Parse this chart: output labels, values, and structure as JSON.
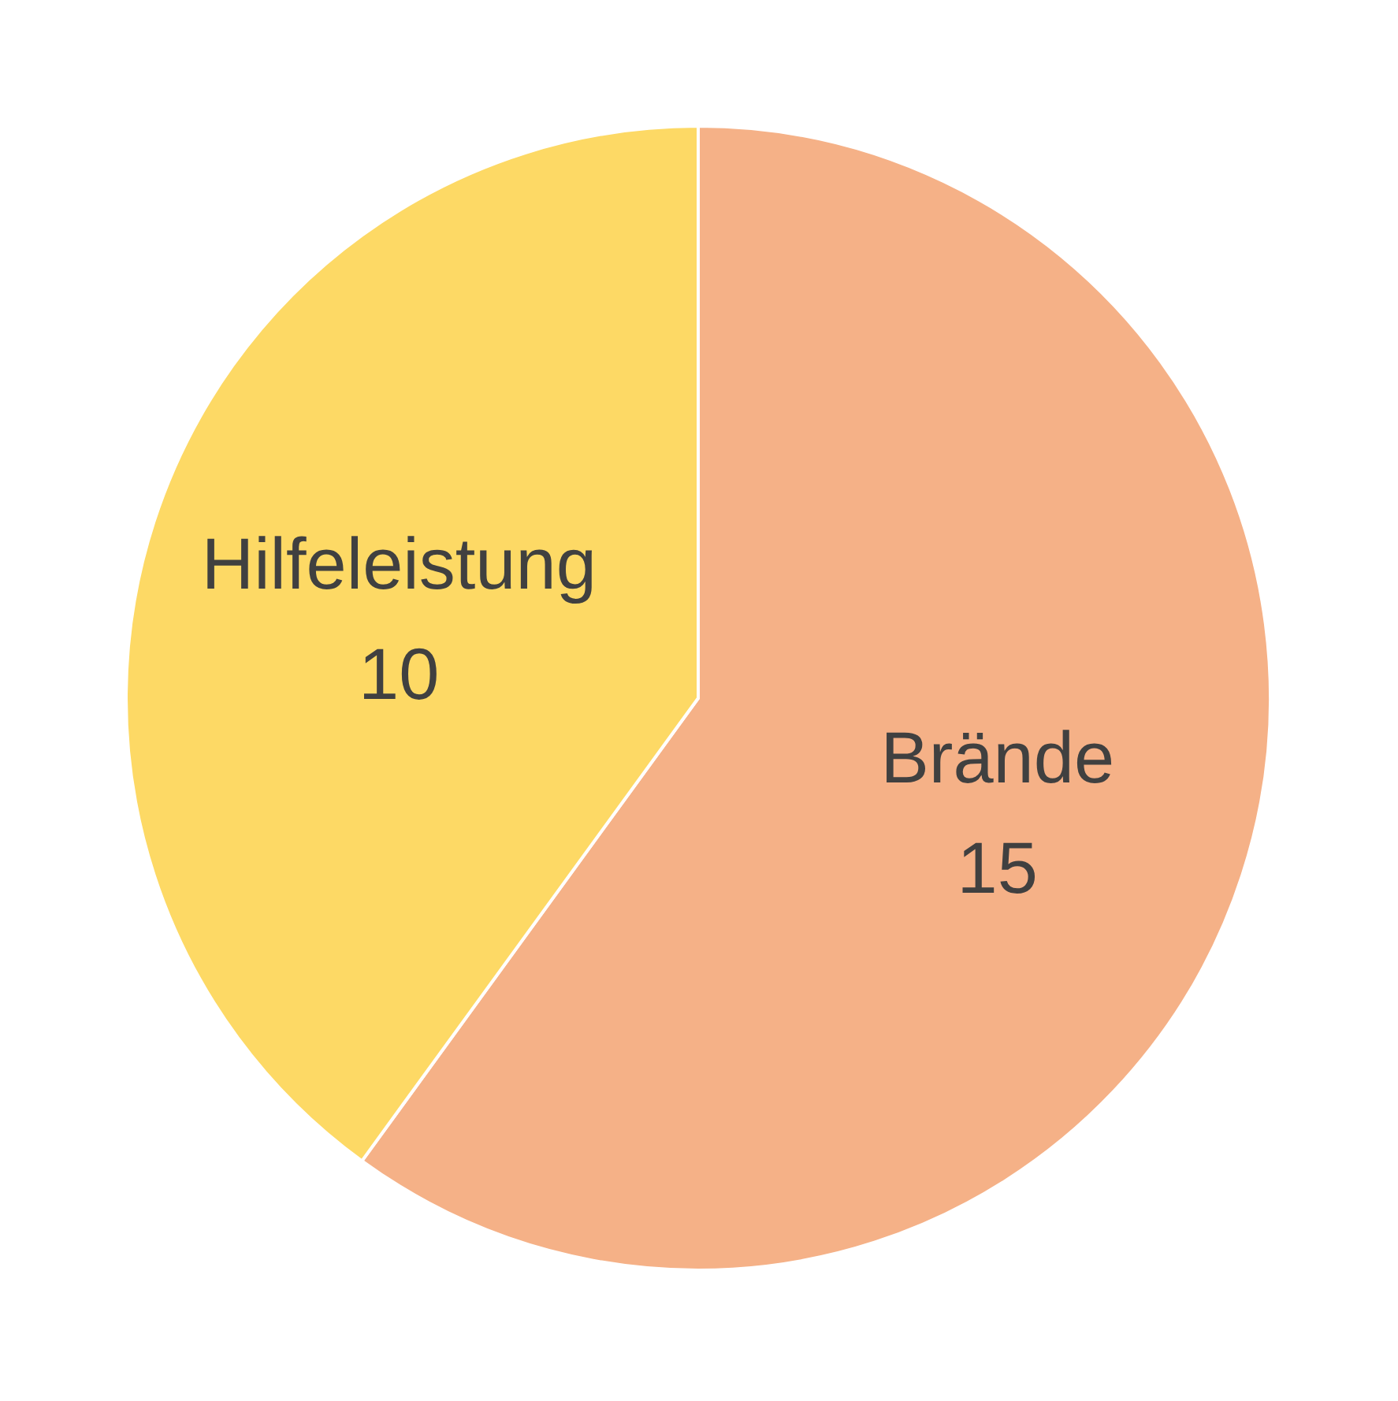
{
  "chart_data": {
    "type": "pie",
    "categories": [
      "Brände",
      "Hilfeleistung"
    ],
    "values": [
      15,
      10
    ],
    "colors": [
      "#f5b187",
      "#fdd965"
    ],
    "data_labels": true
  }
}
